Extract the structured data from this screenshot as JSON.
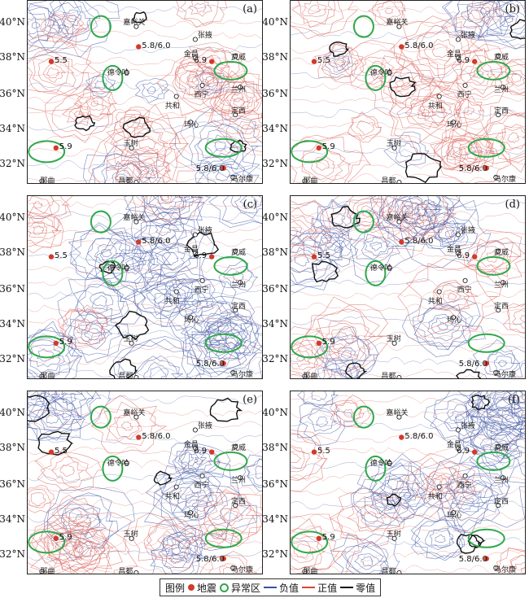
{
  "panels": [
    {
      "label": "(a)",
      "variant": 0
    },
    {
      "label": "(b)",
      "variant": 1
    },
    {
      "label": "(c)",
      "variant": 2
    },
    {
      "label": "(d)",
      "variant": 3
    },
    {
      "label": "(e)",
      "variant": 0
    },
    {
      "label": "(f)",
      "variant": 4
    }
  ],
  "lat_labels": [
    "40°N",
    "38°N",
    "36°N",
    "34°N",
    "32°N"
  ],
  "cities": [
    "嘉峪关",
    "张掖",
    "金昌",
    "武威",
    "德令哈",
    "西宁",
    "兰州",
    "共和",
    "定西",
    "玛沁",
    "玉树",
    "马尔康",
    "昌都",
    "那曲"
  ],
  "earthquakes": [
    "5.5",
    "5.8/6.0",
    "6.9",
    "5.9",
    "5.8/6.0"
  ],
  "legend": {
    "title": "图例",
    "items": [
      "地震",
      "异常区",
      "负值",
      "正值",
      "零值"
    ]
  },
  "colors": {
    "positive": "#d9665e",
    "negative": "#4a5ea8",
    "zero": "#111111",
    "anomaly": "#2ea84a",
    "quake": "#d23a2a"
  }
}
